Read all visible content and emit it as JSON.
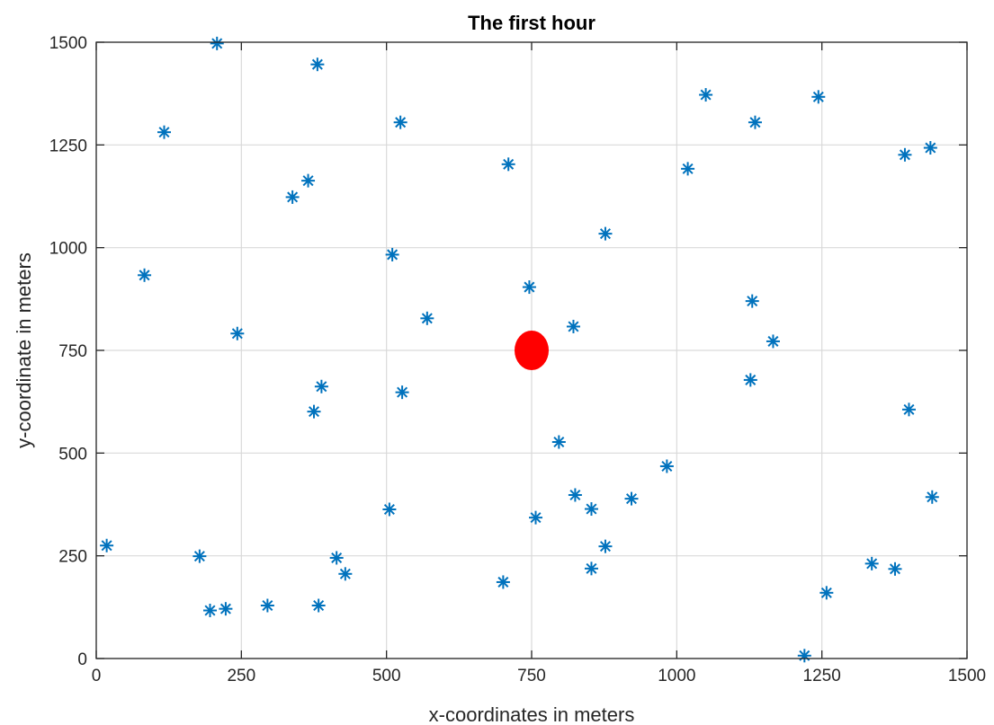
{
  "chart_data": {
    "type": "scatter",
    "title": "The first hour",
    "xlabel": "x-coordinates in meters",
    "ylabel": "y-coordinate in meters",
    "xlim": [
      0,
      1500
    ],
    "ylim": [
      0,
      1500
    ],
    "xticks": [
      0,
      250,
      500,
      750,
      1000,
      1250,
      1500
    ],
    "yticks": [
      0,
      250,
      500,
      750,
      1000,
      1250,
      1500
    ],
    "grid": true,
    "series": [
      {
        "marker": "asterisk",
        "color": "#0072BD",
        "points": [
          [
            208,
            1497
          ],
          [
            381,
            1446
          ],
          [
            117,
            1281
          ],
          [
            524,
            1305
          ],
          [
            710,
            1203
          ],
          [
            365,
            1163
          ],
          [
            338,
            1123
          ],
          [
            1050,
            1372
          ],
          [
            1135,
            1305
          ],
          [
            1244,
            1367
          ],
          [
            1019,
            1192
          ],
          [
            1393,
            1226
          ],
          [
            1437,
            1243
          ],
          [
            877,
            1034
          ],
          [
            83,
            933
          ],
          [
            510,
            983
          ],
          [
            746,
            904
          ],
          [
            1130,
            870
          ],
          [
            570,
            828
          ],
          [
            243,
            791
          ],
          [
            822,
            808
          ],
          [
            1166,
            772
          ],
          [
            1127,
            678
          ],
          [
            388,
            662
          ],
          [
            527,
            648
          ],
          [
            375,
            601
          ],
          [
            1400,
            606
          ],
          [
            797,
            527
          ],
          [
            983,
            468
          ],
          [
            1440,
            393
          ],
          [
            505,
            363
          ],
          [
            922,
            389
          ],
          [
            825,
            398
          ],
          [
            853,
            364
          ],
          [
            757,
            343
          ],
          [
            18,
            275
          ],
          [
            178,
            249
          ],
          [
            414,
            245
          ],
          [
            429,
            206
          ],
          [
            877,
            273
          ],
          [
            853,
            219
          ],
          [
            701,
            186
          ],
          [
            1336,
            231
          ],
          [
            1376,
            218
          ],
          [
            1258,
            160
          ],
          [
            196,
            117
          ],
          [
            223,
            121
          ],
          [
            295,
            129
          ],
          [
            383,
            129
          ],
          [
            1220,
            7
          ]
        ]
      },
      {
        "marker": "filled-circle",
        "color": "#FF0000",
        "points": [
          [
            750,
            750
          ]
        ]
      }
    ]
  }
}
